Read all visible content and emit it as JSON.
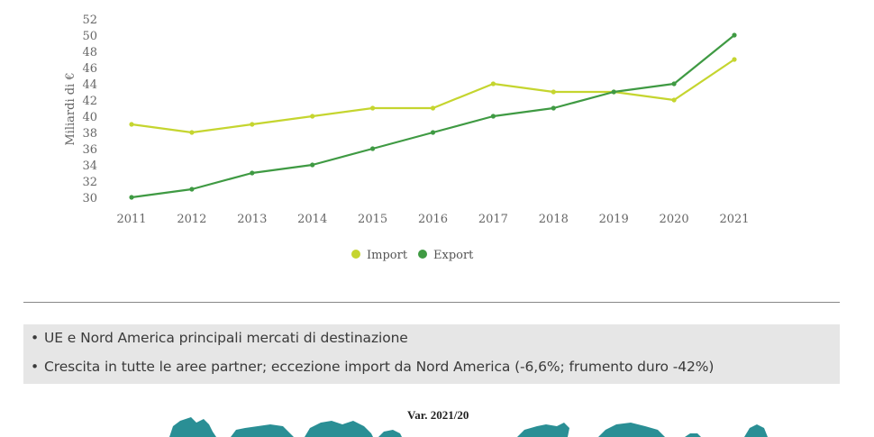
{
  "chart_data": {
    "type": "line",
    "title": "",
    "xlabel": "",
    "ylabel": "Miliardi di €",
    "ylim": [
      30,
      52
    ],
    "yticks": [
      30,
      32,
      34,
      36,
      38,
      40,
      42,
      44,
      46,
      48,
      50,
      52
    ],
    "categories": [
      "2011",
      "2012",
      "2013",
      "2014",
      "2015",
      "2016",
      "2017",
      "2018",
      "2019",
      "2020",
      "2021"
    ],
    "grid": false,
    "legend": "bottom-center",
    "series": [
      {
        "name": "Import",
        "color": "#c5d52f",
        "values": [
          39,
          38,
          39,
          40,
          41,
          41,
          44,
          43,
          43,
          42,
          47
        ]
      },
      {
        "name": "Export",
        "color": "#3f9a43",
        "values": [
          30,
          31,
          33,
          34,
          36,
          38,
          40,
          41,
          43,
          44,
          50
        ]
      }
    ]
  },
  "notes": {
    "items": [
      "UE e Nord America principali mercati di destinazione",
      "Crescita in tutte le aree partner; eccezione import da Nord America (-6,6%; frumento duro -42%)"
    ]
  },
  "map": {
    "title": "Var. 2021/20",
    "color": "#2a8f95"
  }
}
